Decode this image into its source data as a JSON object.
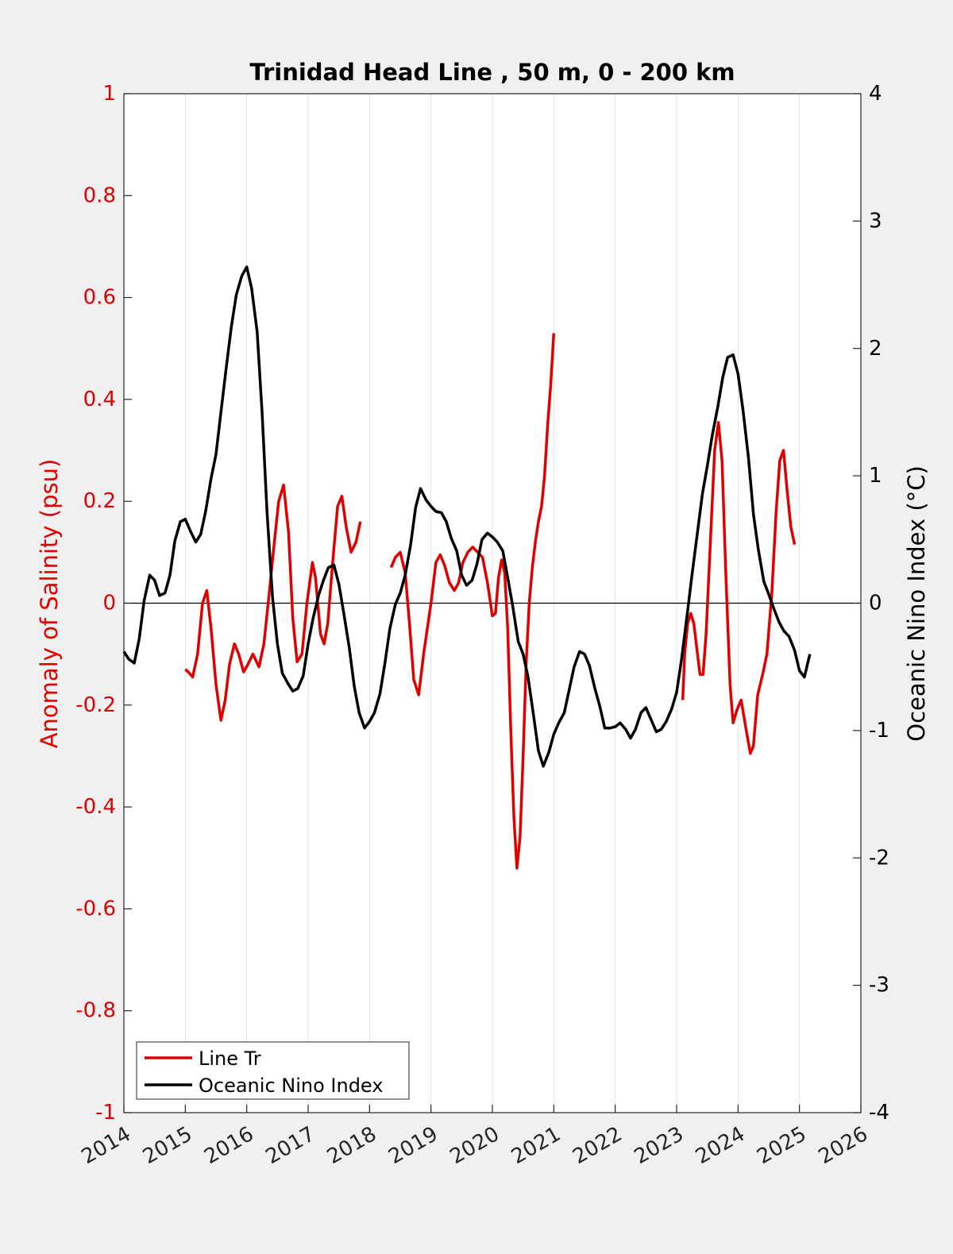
{
  "chart_data": {
    "type": "line",
    "title": "Trinidad Head Line , 50 m, 0 - 200 km",
    "ylabel_left": "Anomaly of Salinity (psu)",
    "ylabel_right": "Oceanic Nino Index (°C)",
    "xlabel": "",
    "xlim": [
      2014,
      2026
    ],
    "ylim_left": [
      -1,
      1
    ],
    "ylim_right": [
      -4,
      4
    ],
    "x_ticks": [
      "2014",
      "2015",
      "2016",
      "2017",
      "2018",
      "2019",
      "2020",
      "2021",
      "2022",
      "2023",
      "2024",
      "2025",
      "2026"
    ],
    "y_ticks_left": [
      "1",
      "0.8",
      "0.6",
      "0.4",
      "0.2",
      "0",
      "-0.2",
      "-0.4",
      "-0.6",
      "-0.8",
      "-1"
    ],
    "y_ticks_right": [
      "4",
      "3",
      "2",
      "1",
      "0",
      "-1",
      "-2",
      "-3",
      "-4"
    ],
    "grid": "vertical",
    "legend_position": "bottom-left",
    "colors": {
      "left_axis": "#e00000",
      "right_axis": "#000000",
      "background": "#f0f0f0",
      "plot_bg": "#ffffff"
    },
    "series": [
      {
        "name": "Line Tr",
        "axis": "left",
        "color": "#e00000",
        "segments": [
          [
            [
              2015.0,
              -0.13
            ],
            [
              2015.05,
              -0.135
            ],
            [
              2015.12,
              -0.145
            ],
            [
              2015.2,
              -0.1
            ],
            [
              2015.28,
              0.0
            ],
            [
              2015.35,
              0.025
            ],
            [
              2015.42,
              -0.05
            ],
            [
              2015.5,
              -0.16
            ],
            [
              2015.58,
              -0.23
            ],
            [
              2015.65,
              -0.19
            ],
            [
              2015.72,
              -0.12
            ],
            [
              2015.8,
              -0.08
            ],
            [
              2015.87,
              -0.1
            ],
            [
              2015.95,
              -0.135
            ],
            [
              2016.02,
              -0.12
            ],
            [
              2016.1,
              -0.1
            ],
            [
              2016.2,
              -0.125
            ],
            [
              2016.28,
              -0.08
            ],
            [
              2016.35,
              0.0
            ],
            [
              2016.45,
              0.12
            ],
            [
              2016.52,
              0.2
            ],
            [
              2016.6,
              0.232
            ],
            [
              2016.68,
              0.14
            ],
            [
              2016.75,
              -0.03
            ],
            [
              2016.82,
              -0.115
            ],
            [
              2016.9,
              -0.1
            ],
            [
              2016.98,
              0.0
            ],
            [
              2017.07,
              0.08
            ],
            [
              2017.12,
              0.05
            ],
            [
              2017.2,
              -0.06
            ],
            [
              2017.26,
              -0.08
            ],
            [
              2017.32,
              -0.04
            ],
            [
              2017.4,
              0.08
            ],
            [
              2017.48,
              0.19
            ],
            [
              2017.55,
              0.21
            ],
            [
              2017.62,
              0.15
            ],
            [
              2017.7,
              0.1
            ],
            [
              2017.78,
              0.12
            ],
            [
              2017.85,
              0.16
            ]
          ],
          [
            [
              2018.35,
              0.07
            ],
            [
              2018.42,
              0.09
            ],
            [
              2018.5,
              0.1
            ],
            [
              2018.58,
              0.06
            ],
            [
              2018.65,
              -0.04
            ],
            [
              2018.72,
              -0.15
            ],
            [
              2018.8,
              -0.18
            ],
            [
              2018.88,
              -0.1
            ],
            [
              2019.0,
              0.0
            ],
            [
              2019.08,
              0.08
            ],
            [
              2019.15,
              0.095
            ],
            [
              2019.22,
              0.075
            ],
            [
              2019.3,
              0.04
            ],
            [
              2019.38,
              0.025
            ],
            [
              2019.45,
              0.04
            ],
            [
              2019.52,
              0.08
            ],
            [
              2019.6,
              0.1
            ],
            [
              2019.68,
              0.11
            ],
            [
              2019.76,
              0.1
            ],
            [
              2019.84,
              0.09
            ],
            [
              2019.92,
              0.04
            ],
            [
              2020.0,
              -0.025
            ],
            [
              2020.05,
              -0.02
            ],
            [
              2020.1,
              0.05
            ],
            [
              2020.15,
              0.085
            ],
            [
              2020.2,
              0.06
            ],
            [
              2020.25,
              -0.05
            ],
            [
              2020.3,
              -0.25
            ],
            [
              2020.35,
              -0.42
            ],
            [
              2020.4,
              -0.52
            ],
            [
              2020.45,
              -0.46
            ],
            [
              2020.5,
              -0.3
            ],
            [
              2020.55,
              -0.12
            ],
            [
              2020.6,
              0.0
            ],
            [
              2020.65,
              0.07
            ],
            [
              2020.7,
              0.12
            ],
            [
              2020.75,
              0.16
            ],
            [
              2020.8,
              0.19
            ],
            [
              2020.85,
              0.25
            ],
            [
              2020.9,
              0.35
            ],
            [
              2020.95,
              0.43
            ],
            [
              2021.0,
              0.53
            ]
          ],
          [
            [
              2023.1,
              -0.19
            ],
            [
              2023.13,
              -0.1
            ],
            [
              2023.18,
              -0.04
            ],
            [
              2023.23,
              -0.02
            ],
            [
              2023.28,
              -0.04
            ],
            [
              2023.33,
              -0.09
            ],
            [
              2023.38,
              -0.14
            ],
            [
              2023.43,
              -0.14
            ],
            [
              2023.48,
              -0.06
            ],
            [
              2023.55,
              0.12
            ],
            [
              2023.62,
              0.3
            ],
            [
              2023.68,
              0.355
            ],
            [
              2023.74,
              0.28
            ],
            [
              2023.8,
              0.06
            ],
            [
              2023.87,
              -0.16
            ],
            [
              2023.92,
              -0.235
            ],
            [
              2023.98,
              -0.21
            ],
            [
              2024.05,
              -0.19
            ],
            [
              2024.12,
              -0.24
            ],
            [
              2024.2,
              -0.295
            ],
            [
              2024.25,
              -0.28
            ],
            [
              2024.32,
              -0.18
            ],
            [
              2024.4,
              -0.14
            ],
            [
              2024.47,
              -0.1
            ],
            [
              2024.55,
              0.02
            ],
            [
              2024.62,
              0.18
            ],
            [
              2024.68,
              0.28
            ],
            [
              2024.74,
              0.3
            ],
            [
              2024.8,
              0.22
            ],
            [
              2024.86,
              0.15
            ],
            [
              2024.92,
              0.115
            ]
          ]
        ]
      },
      {
        "name": "Oceanic Nino Index",
        "axis": "right",
        "color": "#000000",
        "segments": [
          [
            [
              2014.0,
              -0.38
            ],
            [
              2014.08,
              -0.44
            ],
            [
              2014.17,
              -0.47
            ],
            [
              2014.25,
              -0.28
            ],
            [
              2014.33,
              0.02
            ],
            [
              2014.42,
              0.22
            ],
            [
              2014.5,
              0.18
            ],
            [
              2014.58,
              0.06
            ],
            [
              2014.67,
              0.08
            ],
            [
              2014.75,
              0.22
            ],
            [
              2014.83,
              0.49
            ],
            [
              2014.92,
              0.64
            ],
            [
              2015.0,
              0.66
            ],
            [
              2015.08,
              0.57
            ],
            [
              2015.17,
              0.48
            ],
            [
              2015.25,
              0.54
            ],
            [
              2015.33,
              0.72
            ],
            [
              2015.42,
              0.98
            ],
            [
              2015.5,
              1.17
            ],
            [
              2015.58,
              1.5
            ],
            [
              2015.67,
              1.86
            ],
            [
              2015.75,
              2.17
            ],
            [
              2015.83,
              2.42
            ],
            [
              2015.92,
              2.57
            ],
            [
              2016.0,
              2.64
            ],
            [
              2016.08,
              2.47
            ],
            [
              2016.17,
              2.13
            ],
            [
              2016.25,
              1.5
            ],
            [
              2016.33,
              0.72
            ],
            [
              2016.42,
              0.05
            ],
            [
              2016.5,
              -0.32
            ],
            [
              2016.58,
              -0.55
            ],
            [
              2016.67,
              -0.63
            ],
            [
              2016.75,
              -0.69
            ],
            [
              2016.83,
              -0.67
            ],
            [
              2016.92,
              -0.57
            ],
            [
              2017.0,
              -0.32
            ],
            [
              2017.08,
              -0.12
            ],
            [
              2017.17,
              0.06
            ],
            [
              2017.25,
              0.18
            ],
            [
              2017.33,
              0.28
            ],
            [
              2017.42,
              0.3
            ],
            [
              2017.5,
              0.15
            ],
            [
              2017.58,
              -0.08
            ],
            [
              2017.67,
              -0.35
            ],
            [
              2017.75,
              -0.65
            ],
            [
              2017.83,
              -0.86
            ],
            [
              2017.92,
              -0.98
            ],
            [
              2018.0,
              -0.93
            ],
            [
              2018.08,
              -0.86
            ],
            [
              2018.17,
              -0.71
            ],
            [
              2018.25,
              -0.47
            ],
            [
              2018.33,
              -0.2
            ],
            [
              2018.42,
              -0.01
            ],
            [
              2018.5,
              0.08
            ],
            [
              2018.58,
              0.22
            ],
            [
              2018.67,
              0.46
            ],
            [
              2018.75,
              0.75
            ],
            [
              2018.83,
              0.9
            ],
            [
              2018.92,
              0.81
            ],
            [
              2019.0,
              0.76
            ],
            [
              2019.08,
              0.72
            ],
            [
              2019.17,
              0.71
            ],
            [
              2019.25,
              0.64
            ],
            [
              2019.33,
              0.51
            ],
            [
              2019.42,
              0.41
            ],
            [
              2019.5,
              0.22
            ],
            [
              2019.58,
              0.14
            ],
            [
              2019.67,
              0.18
            ],
            [
              2019.75,
              0.31
            ],
            [
              2019.83,
              0.5
            ],
            [
              2019.92,
              0.55
            ],
            [
              2020.0,
              0.52
            ],
            [
              2020.08,
              0.48
            ],
            [
              2020.17,
              0.41
            ],
            [
              2020.25,
              0.2
            ],
            [
              2020.33,
              -0.02
            ],
            [
              2020.42,
              -0.3
            ],
            [
              2020.5,
              -0.4
            ],
            [
              2020.58,
              -0.58
            ],
            [
              2020.67,
              -0.88
            ],
            [
              2020.75,
              -1.16
            ],
            [
              2020.83,
              -1.28
            ],
            [
              2020.92,
              -1.17
            ],
            [
              2021.0,
              -1.03
            ],
            [
              2021.08,
              -0.94
            ],
            [
              2021.17,
              -0.86
            ],
            [
              2021.25,
              -0.68
            ],
            [
              2021.33,
              -0.5
            ],
            [
              2021.42,
              -0.38
            ],
            [
              2021.5,
              -0.4
            ],
            [
              2021.58,
              -0.49
            ],
            [
              2021.67,
              -0.67
            ],
            [
              2021.75,
              -0.81
            ],
            [
              2021.83,
              -0.98
            ],
            [
              2021.92,
              -0.98
            ],
            [
              2022.0,
              -0.97
            ],
            [
              2022.08,
              -0.94
            ],
            [
              2022.17,
              -0.99
            ],
            [
              2022.25,
              -1.06
            ],
            [
              2022.33,
              -0.99
            ],
            [
              2022.42,
              -0.86
            ],
            [
              2022.5,
              -0.82
            ],
            [
              2022.58,
              -0.91
            ],
            [
              2022.67,
              -1.01
            ],
            [
              2022.75,
              -0.99
            ],
            [
              2022.83,
              -0.93
            ],
            [
              2022.92,
              -0.83
            ],
            [
              2023.0,
              -0.7
            ],
            [
              2023.08,
              -0.44
            ],
            [
              2023.17,
              -0.1
            ],
            [
              2023.25,
              0.22
            ],
            [
              2023.33,
              0.52
            ],
            [
              2023.42,
              0.86
            ],
            [
              2023.5,
              1.08
            ],
            [
              2023.58,
              1.32
            ],
            [
              2023.67,
              1.54
            ],
            [
              2023.75,
              1.77
            ],
            [
              2023.83,
              1.93
            ],
            [
              2023.92,
              1.95
            ],
            [
              2024.0,
              1.8
            ],
            [
              2024.08,
              1.52
            ],
            [
              2024.17,
              1.14
            ],
            [
              2024.25,
              0.7
            ],
            [
              2024.33,
              0.42
            ],
            [
              2024.42,
              0.17
            ],
            [
              2024.5,
              0.07
            ],
            [
              2024.58,
              -0.04
            ],
            [
              2024.67,
              -0.15
            ],
            [
              2024.75,
              -0.22
            ],
            [
              2024.83,
              -0.26
            ],
            [
              2024.92,
              -0.37
            ],
            [
              2025.0,
              -0.53
            ],
            [
              2025.08,
              -0.58
            ],
            [
              2025.17,
              -0.4
            ]
          ]
        ]
      }
    ]
  }
}
